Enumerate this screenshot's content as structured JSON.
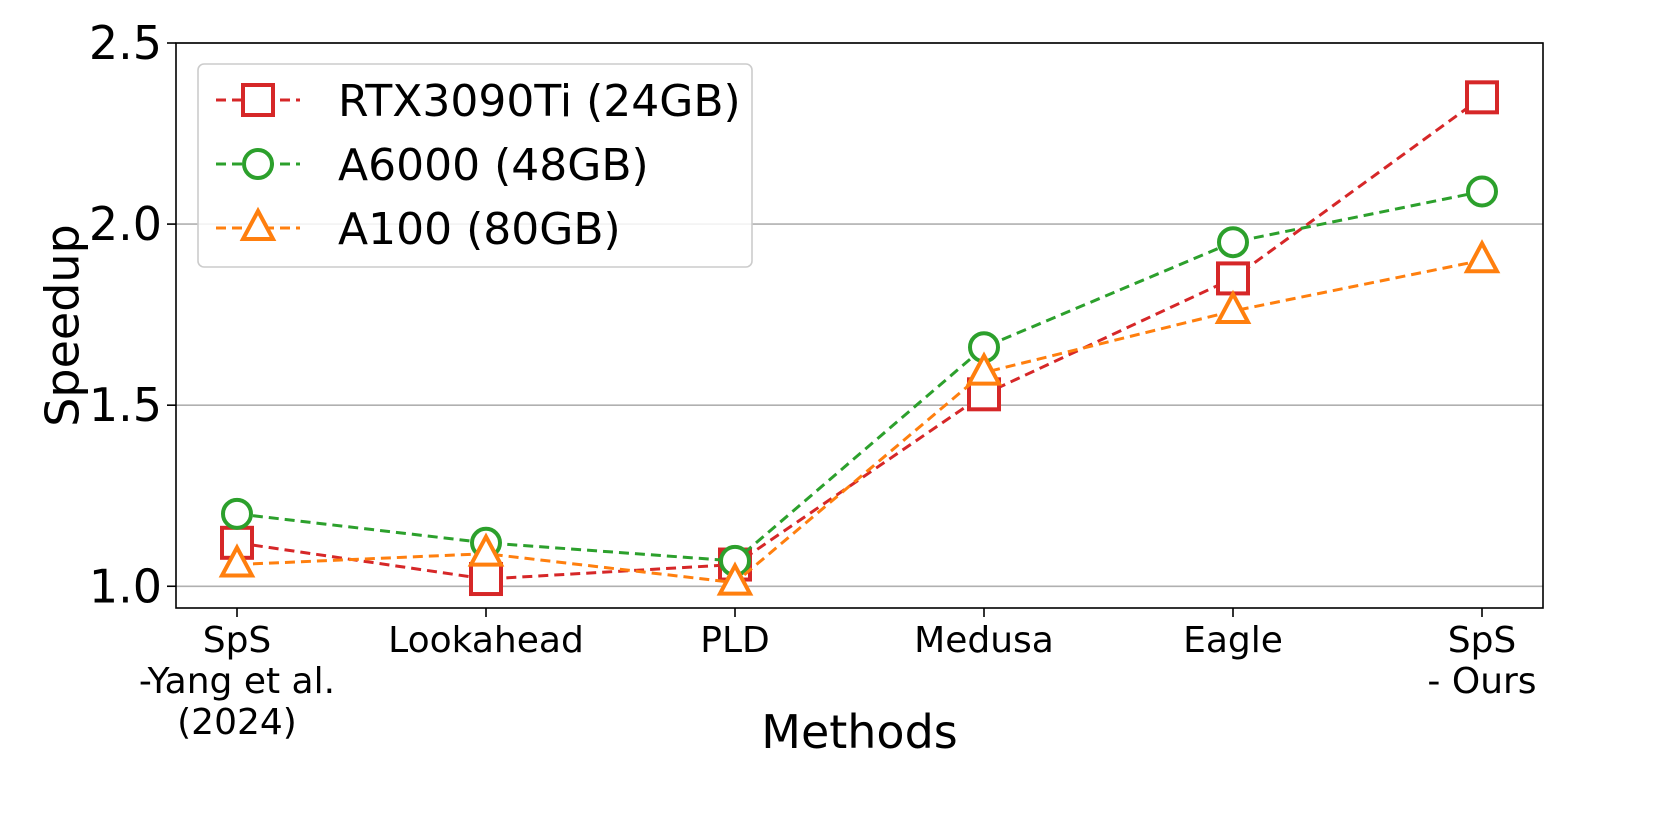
{
  "chart_data": {
    "type": "line",
    "categories": [
      [
        "SpS",
        "-Yang et al.",
        "(2024)"
      ],
      [
        "Lookahead"
      ],
      [
        "PLD"
      ],
      [
        "Medusa"
      ],
      [
        "Eagle"
      ],
      [
        "SpS",
        "- Ours"
      ]
    ],
    "series": [
      {
        "name": "RTX3090Ti (24GB)",
        "color": "#d62728",
        "marker": "square",
        "values": [
          1.12,
          1.02,
          1.06,
          1.53,
          1.85,
          2.35
        ]
      },
      {
        "name": "A6000 (48GB)",
        "color": "#2ca02c",
        "marker": "circle",
        "values": [
          1.2,
          1.12,
          1.07,
          1.66,
          1.95,
          2.09
        ]
      },
      {
        "name": "A100 (80GB)",
        "color": "#ff7f0e",
        "marker": "triangle",
        "values": [
          1.06,
          1.09,
          1.01,
          1.59,
          1.76,
          1.9
        ]
      }
    ],
    "xlabel": "Methods",
    "ylabel": "Speedup",
    "ylim": [
      0.94,
      2.5
    ],
    "yticks": [
      "1.0",
      "1.5",
      "2.0",
      "2.5"
    ],
    "grid": "y",
    "legend": "top-left"
  }
}
